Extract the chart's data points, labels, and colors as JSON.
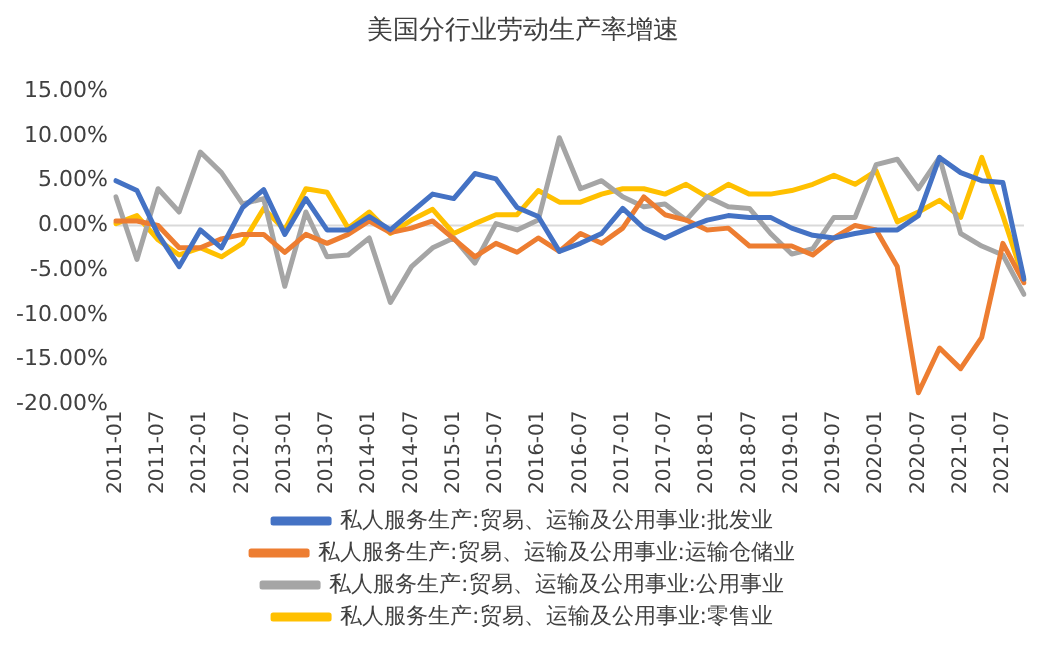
{
  "chart_data": {
    "type": "line",
    "title": "美国分行业劳动生产率增速",
    "categories": [
      "2011-01",
      null,
      "2011-07",
      null,
      "2012-01",
      null,
      "2012-07",
      null,
      "2013-01",
      null,
      "2013-07",
      null,
      "2014-01",
      null,
      "2014-07",
      null,
      "2015-01",
      null,
      "2015-07",
      null,
      "2016-01",
      null,
      "2016-07",
      null,
      "2017-01",
      null,
      "2017-07",
      null,
      "2018-01",
      null,
      "2018-07",
      null,
      "2019-01",
      null,
      "2019-07",
      null,
      "2020-01",
      null,
      "2020-07",
      null,
      "2021-01",
      null,
      "2021-07",
      null
    ],
    "series": [
      {
        "name": "私人服务生产:贸易、运输及公用事业:批发业",
        "color": "#4472c4",
        "values": [
          5.0,
          3.9,
          -1,
          -4.6,
          -0.5,
          -2.5,
          2,
          4,
          -1,
          3,
          -0.5,
          -0.5,
          1,
          -0.5,
          1.5,
          3.5,
          3,
          5.8,
          5.2,
          2,
          1,
          -2.9,
          -2,
          -0.9,
          1.9,
          -0.3,
          -1.4,
          -0.3,
          0.6,
          1.1,
          0.9,
          0.9,
          -0.3,
          -1.1,
          -1.4,
          -0.9,
          -0.5,
          -0.5,
          1.1,
          7.6,
          5.9,
          5,
          4.8,
          -6
        ]
      },
      {
        "name": "私人服务生产:贸易、运输及公用事业:运输仓储业",
        "color": "#ed7d31",
        "values": [
          0.5,
          0.5,
          0,
          -2.5,
          -2.5,
          -1.5,
          -1,
          -1,
          -3,
          -1,
          -2,
          -1,
          0.5,
          -0.8,
          -0.3,
          0.5,
          -1.5,
          -3.5,
          -2,
          -3,
          -1.4,
          -2.9,
          -0.9,
          -2,
          -0.3,
          3.2,
          1.2,
          0.6,
          -0.5,
          -0.3,
          -2.3,
          -2.3,
          -2.3,
          -3.3,
          -1.4,
          0,
          -0.5,
          -4.6,
          -18.7,
          -13.7,
          -16,
          -12.5,
          -2,
          -6.4
        ]
      },
      {
        "name": "私人服务生产:贸易、运输及公用事业:公用事业",
        "color": "#a5a5a5",
        "values": [
          3.2,
          -3.8,
          4.1,
          1.5,
          8.2,
          5.9,
          2.4,
          3,
          -6.8,
          1.5,
          -3.5,
          -3.3,
          -1.4,
          -8.6,
          -4.6,
          -2.5,
          -1.4,
          -4.2,
          0.2,
          -0.5,
          0.6,
          9.8,
          4.1,
          5,
          3.2,
          2.1,
          2.4,
          0.6,
          3.2,
          2.1,
          1.9,
          -0.9,
          -3.2,
          -2.6,
          0.9,
          0.9,
          6.8,
          7.4,
          4.1,
          7.6,
          -0.9,
          -2.3,
          -3.3,
          -7.7
        ]
      },
      {
        "name": "私人服务生产:贸易、运输及公用事业:零售业",
        "color": "#ffc000",
        "values": [
          0.2,
          1.1,
          -1.6,
          -3.3,
          -2.5,
          -3.5,
          -2,
          1.9,
          -0.5,
          4.1,
          3.7,
          -0.3,
          1.5,
          -0.9,
          0.6,
          1.8,
          -0.9,
          0.2,
          1.2,
          1.2,
          3.9,
          2.6,
          2.6,
          3.5,
          4.1,
          4.1,
          3.5,
          4.6,
          3.2,
          4.6,
          3.5,
          3.5,
          3.9,
          4.6,
          5.6,
          4.6,
          6.1,
          0.4,
          1.5,
          2.8,
          0.9,
          7.6,
          1.1,
          -6.1
        ]
      }
    ],
    "ylim": [
      -20,
      15
    ],
    "yticks": [
      {
        "value": 15,
        "label": "15.00%"
      },
      {
        "value": 10,
        "label": "10.00%"
      },
      {
        "value": 5,
        "label": "5.00%"
      },
      {
        "value": 0,
        "label": "0.00%"
      },
      {
        "value": -5,
        "label": "-5.00%"
      },
      {
        "value": -10,
        "label": "-10.00%"
      },
      {
        "value": -15,
        "label": "-15.00%"
      },
      {
        "value": -20,
        "label": "-20.00%"
      }
    ],
    "ref_lines": [
      {
        "axis": "y",
        "value": 0,
        "color": "#d9d9d9"
      }
    ],
    "grid": false,
    "legend": "bottom",
    "marker": "none",
    "line_style": "solid"
  }
}
